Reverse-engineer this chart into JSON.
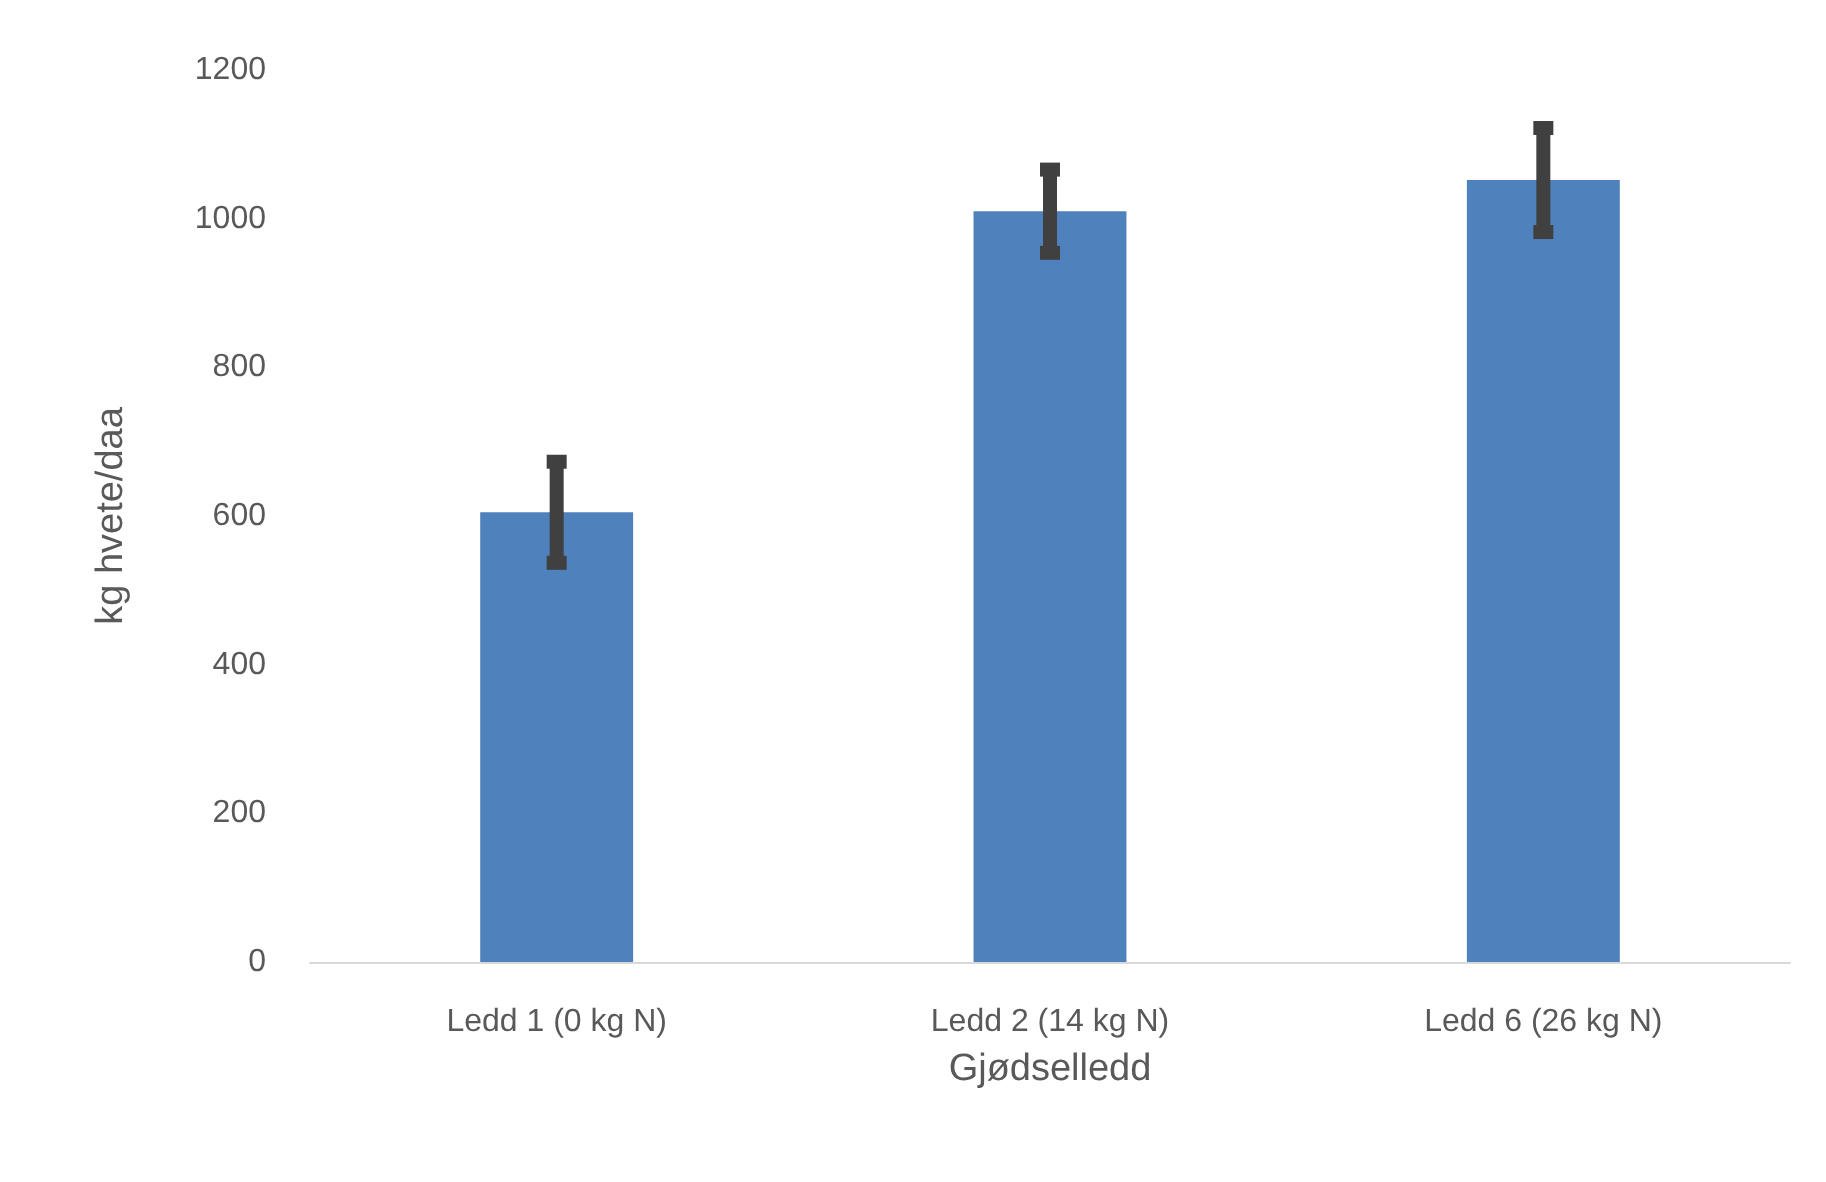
{
  "chart_data": {
    "type": "bar",
    "xlabel": "Gjødselledd",
    "ylabel": "kg hvete/daa",
    "categories": [
      "Ledd 1 (0 kg N)",
      "Ledd 2 (14 kg N)",
      "Ledd 6 (26 kg N)"
    ],
    "values": [
      605,
      1010,
      1052
    ],
    "errors": [
      68,
      56,
      70
    ],
    "color": "#4f81bd",
    "ylim": [
      0,
      1200
    ],
    "yticks": [
      0,
      200,
      400,
      600,
      800,
      1000,
      1200
    ],
    "grid": false
  }
}
